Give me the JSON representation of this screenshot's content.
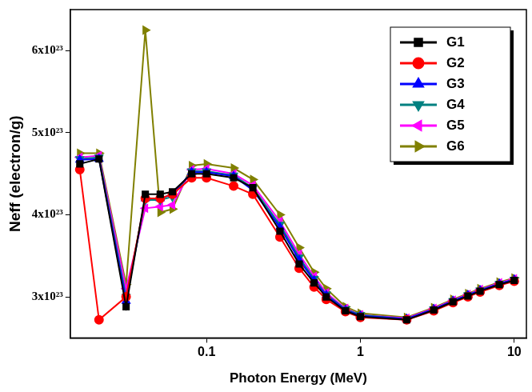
{
  "chart_data": {
    "type": "line",
    "x_label": "Photon Energy (MeV)",
    "y_label": "Neff (electron/g)",
    "log": "x",
    "grid": false,
    "legend": "upper right",
    "x": [
      0.015,
      0.02,
      0.03,
      0.04,
      0.05,
      0.06,
      0.08,
      0.1,
      0.15,
      0.2,
      0.3,
      0.4,
      0.5,
      0.6,
      0.8,
      1,
      2,
      3,
      4,
      5,
      6,
      8,
      10
    ],
    "xlim": [
      0.013,
      12
    ],
    "xticks": [
      0.1,
      1,
      10
    ],
    "ylim": [
      2.5e+23,
      6.5e+23
    ],
    "yticks": [
      {
        "value": 3e+23,
        "label": "3x10²³"
      },
      {
        "value": 4e+23,
        "label": "4x10²³"
      },
      {
        "value": 5e+23,
        "label": "5x10²³"
      },
      {
        "value": 6e+23,
        "label": "6x10²³"
      }
    ],
    "series": [
      {
        "name": "G1",
        "color": "#000000",
        "marker": "square",
        "line_style": "solid",
        "values": [
          4.62e+23,
          4.68e+23,
          2.88e+23,
          4.25e+23,
          4.25e+23,
          4.28e+23,
          4.5e+23,
          4.5e+23,
          4.45e+23,
          4.33e+23,
          3.8e+23,
          3.4e+23,
          3.17e+23,
          3e+23,
          2.83e+23,
          2.76e+23,
          2.72e+23,
          2.84e+23,
          2.94e+23,
          3.01e+23,
          3.07e+23,
          3.15e+23,
          3.2e+23
        ]
      },
      {
        "name": "G2",
        "color": "#ff0000",
        "marker": "circle",
        "line_style": "solid",
        "values": [
          4.55e+23,
          2.72e+23,
          3e+23,
          4.2e+23,
          4.2e+23,
          4.25e+23,
          4.45e+23,
          4.45e+23,
          4.35e+23,
          4.25e+23,
          3.73e+23,
          3.35e+23,
          3.12e+23,
          2.97e+23,
          2.82e+23,
          2.75e+23,
          2.72e+23,
          2.83e+23,
          2.93e+23,
          3e+23,
          3.06e+23,
          3.14e+23,
          3.19e+23
        ]
      },
      {
        "name": "G3",
        "color": "#0000ff",
        "marker": "triangle-up",
        "line_style": "solid",
        "values": [
          4.67e+23,
          4.68e+23,
          2.95e+23,
          4.2e+23,
          4.2e+23,
          4.25e+23,
          4.52e+23,
          4.52e+23,
          4.47e+23,
          4.3e+23,
          3.85e+23,
          3.45e+23,
          3.2e+23,
          3.02e+23,
          2.84e+23,
          2.77e+23,
          2.73e+23,
          2.85e+23,
          2.95e+23,
          3.02e+23,
          3.08e+23,
          3.16e+23,
          3.21e+23
        ]
      },
      {
        "name": "G4",
        "color": "#008080",
        "marker": "triangle-down",
        "line_style": "solid",
        "values": [
          4.68e+23,
          4.7e+23,
          3e+23,
          4.18e+23,
          4.18e+23,
          4.22e+23,
          4.53e+23,
          4.53e+23,
          4.48e+23,
          4.33e+23,
          3.88e+23,
          3.48e+23,
          3.22e+23,
          3.03e+23,
          2.85e+23,
          2.78e+23,
          2.73e+23,
          2.85e+23,
          2.95e+23,
          3.02e+23,
          3.08e+23,
          3.16e+23,
          3.21e+23
        ]
      },
      {
        "name": "G5",
        "color": "#ff00ff",
        "marker": "triangle-left",
        "line_style": "solid",
        "values": [
          4.7e+23,
          4.72e+23,
          3.1e+23,
          4.08e+23,
          4.1e+23,
          4.12e+23,
          4.55e+23,
          4.56e+23,
          4.5e+23,
          4.36e+23,
          3.92e+23,
          3.52e+23,
          3.25e+23,
          3.05e+23,
          2.86e+23,
          2.78e+23,
          2.74e+23,
          2.86e+23,
          2.96e+23,
          3.03e+23,
          3.09e+23,
          3.17e+23,
          3.22e+23
        ]
      },
      {
        "name": "G6",
        "color": "#808000",
        "marker": "triangle-right",
        "line_style": "solid",
        "values": [
          4.75e+23,
          4.75e+23,
          3.15e+23,
          6.25e+23,
          4.03e+23,
          4.07e+23,
          4.6e+23,
          4.62e+23,
          4.57e+23,
          4.43e+23,
          4e+23,
          3.6e+23,
          3.3e+23,
          3.1e+23,
          2.88e+23,
          2.8e+23,
          2.75e+23,
          2.87e+23,
          2.97e+23,
          3.04e+23,
          3.1e+23,
          3.18e+23,
          3.23e+23
        ]
      }
    ]
  }
}
